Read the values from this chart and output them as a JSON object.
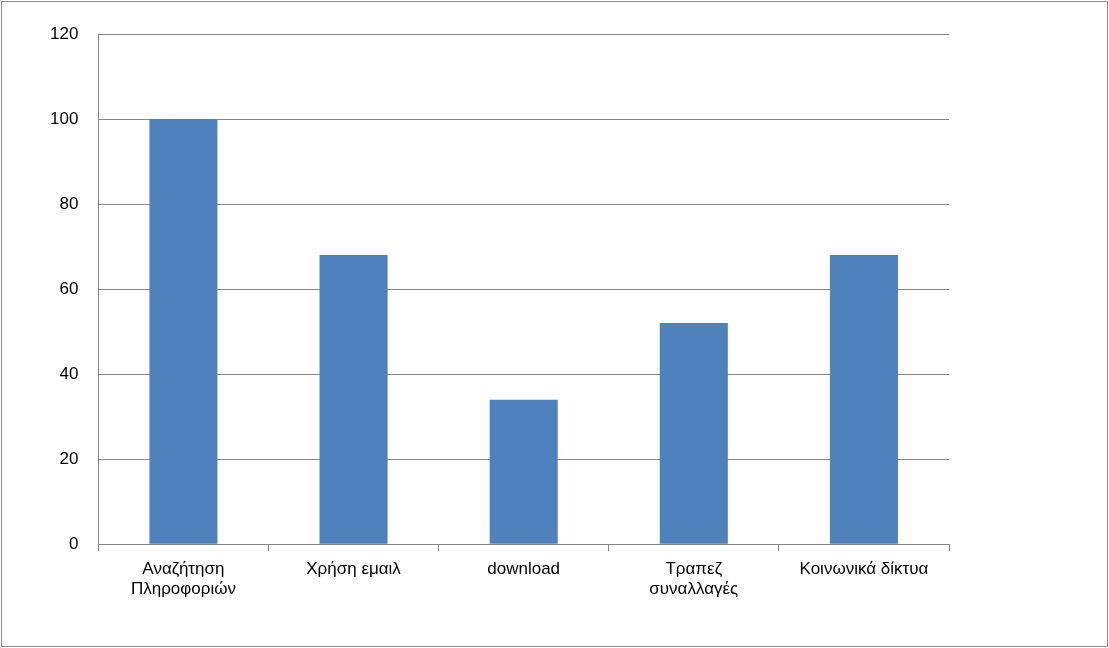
{
  "chart_data": {
    "type": "bar",
    "categories": [
      "Αναζήτηση Πληροφοριών",
      "Χρήση εμαιλ",
      "download",
      "Τραπεζ συναλλαγές",
      "Κοινωνικά δίκτυα"
    ],
    "values": [
      100,
      68,
      34,
      52,
      68
    ],
    "color": "#4f81bd",
    "ylim": [
      0,
      120
    ],
    "yticks": [
      0,
      20,
      40,
      60,
      80,
      100,
      120
    ],
    "grid": "y",
    "legend": false
  }
}
